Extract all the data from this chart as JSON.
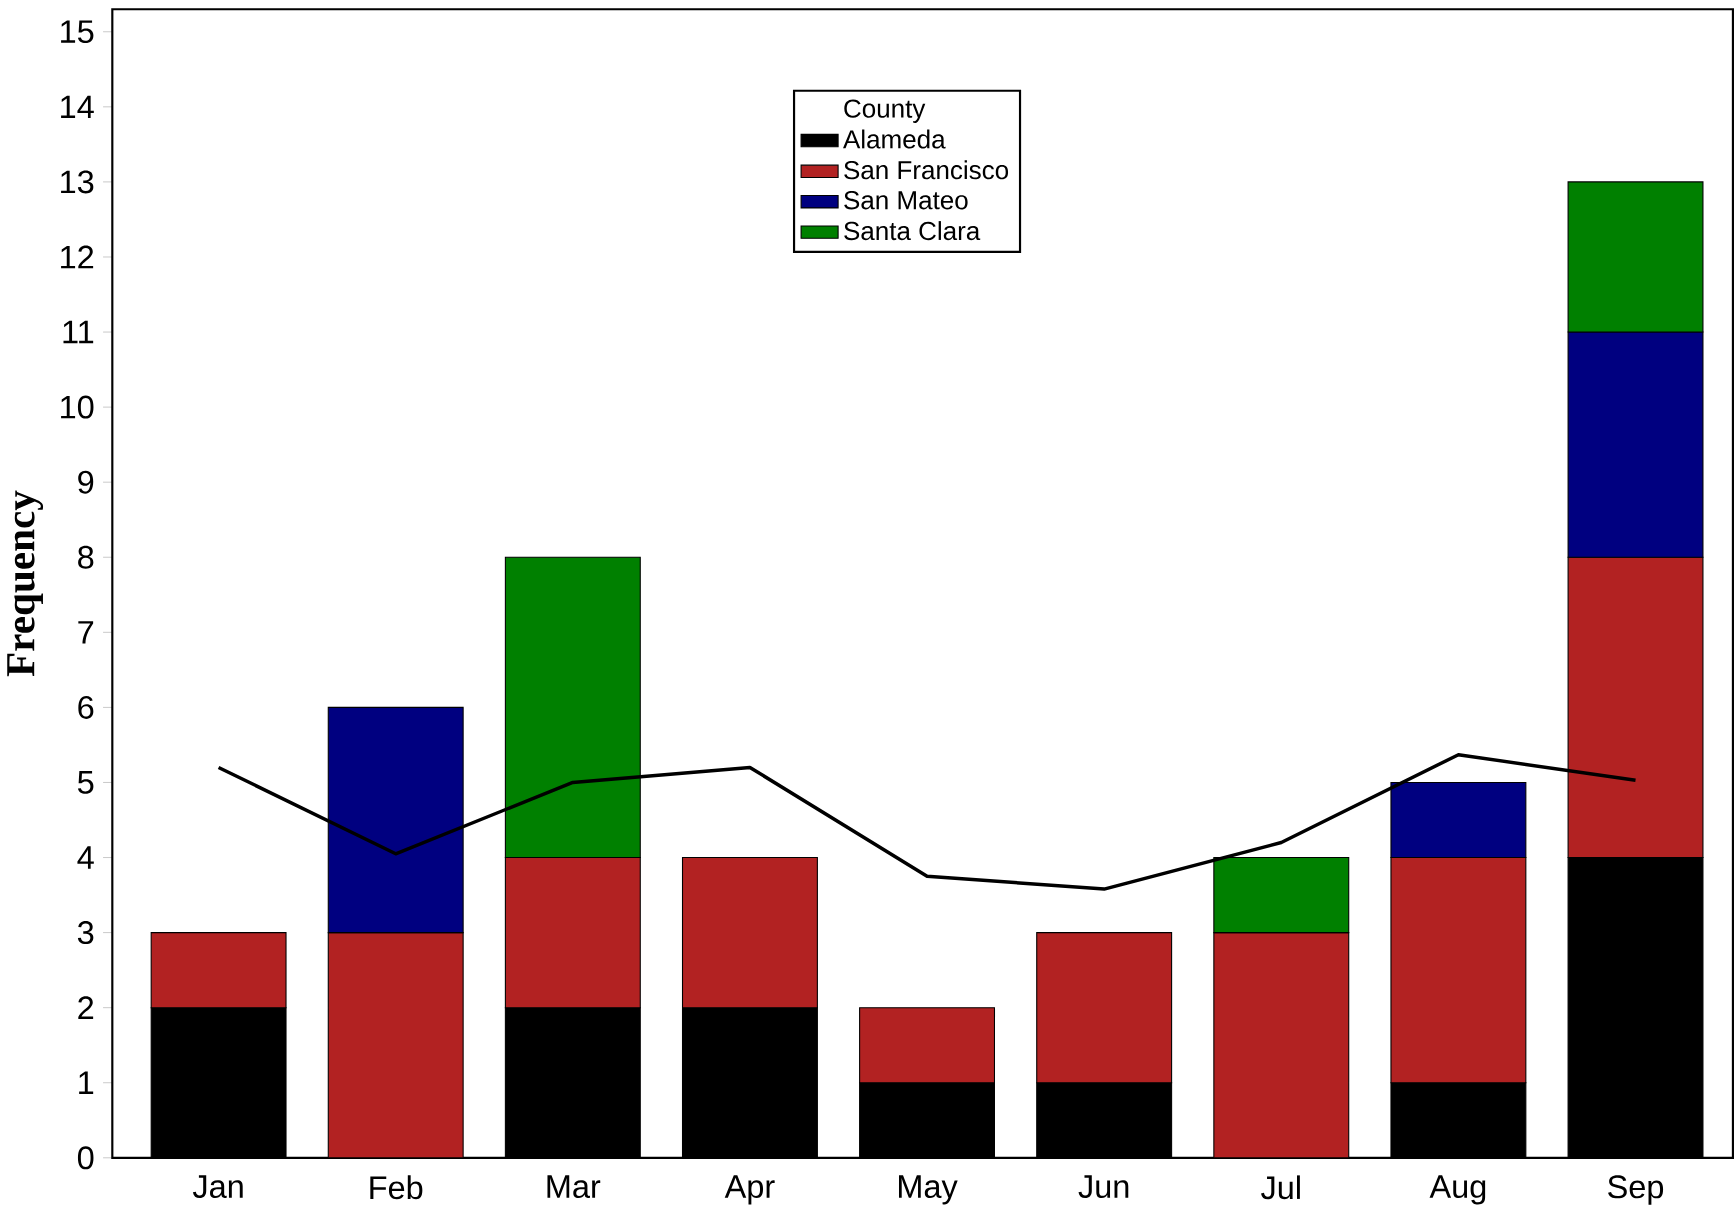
{
  "chart_data": {
    "type": "bar",
    "stacked": true,
    "ylabel": "Frequency",
    "legend_title": "County",
    "legend": "top",
    "categories": [
      "Jan",
      "Feb",
      "Mar",
      "Apr",
      "May",
      "Jun",
      "Jul",
      "Aug",
      "Sep"
    ],
    "ylim": [
      0,
      15.3
    ],
    "yticks": [
      0,
      1,
      2,
      3,
      4,
      5,
      6,
      7,
      8,
      9,
      10,
      11,
      12,
      13,
      14,
      15
    ],
    "series": [
      {
        "name": "Alameda",
        "color": "#000000",
        "values": [
          2,
          0,
          2,
          2,
          1,
          1,
          0,
          1,
          4
        ]
      },
      {
        "name": "San Francisco",
        "color": "#b22222",
        "values": [
          1,
          3,
          2,
          2,
          1,
          2,
          3,
          3,
          4
        ]
      },
      {
        "name": "San Mateo",
        "color": "#000080",
        "values": [
          0,
          3,
          0,
          0,
          0,
          0,
          0,
          1,
          3
        ]
      },
      {
        "name": "Santa Clara",
        "color": "#008000",
        "values": [
          0,
          0,
          4,
          0,
          0,
          0,
          1,
          0,
          2
        ]
      },
      {
        "type": "line",
        "color": "#000000",
        "values": [
          5.2,
          4.05,
          5.0,
          5.2,
          3.75,
          3.58,
          4.2,
          5.37,
          5.03
        ]
      }
    ]
  }
}
